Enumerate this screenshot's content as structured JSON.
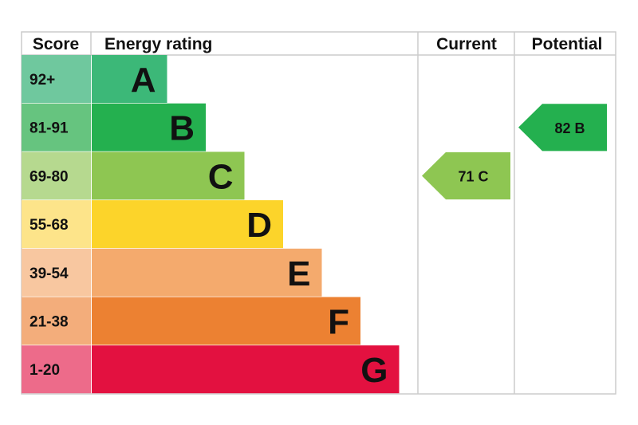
{
  "headers": {
    "score": "Score",
    "energy_rating": "Energy rating",
    "current": "Current",
    "potential": "Potential"
  },
  "chart_data": {
    "type": "bar",
    "title": "",
    "bands": [
      {
        "letter": "A",
        "score": "92+",
        "color": "#3cb878",
        "score_color": "#6fc89e",
        "level": 1
      },
      {
        "letter": "B",
        "score": "81-91",
        "color": "#24b04f",
        "score_color": "#66c47f",
        "level": 2
      },
      {
        "letter": "C",
        "score": "69-80",
        "color": "#8ec652",
        "score_color": "#b6d98f",
        "level": 3
      },
      {
        "letter": "D",
        "score": "55-68",
        "color": "#fcd42a",
        "score_color": "#fde48a",
        "level": 4
      },
      {
        "letter": "E",
        "score": "39-54",
        "color": "#f4aa6d",
        "score_color": "#f8c7a0",
        "level": 5
      },
      {
        "letter": "F",
        "score": "21-38",
        "color": "#ec8132",
        "score_color": "#f3ad7b",
        "level": 6
      },
      {
        "letter": "G",
        "score": "1-20",
        "color": "#e31140",
        "score_color": "#ed6b8a",
        "level": 7
      }
    ],
    "current": {
      "value": 71,
      "letter": "C",
      "label": "71  C",
      "color": "#8ec652"
    },
    "potential": {
      "value": 82,
      "letter": "B",
      "label": "82  B",
      "color": "#24b04f"
    }
  }
}
